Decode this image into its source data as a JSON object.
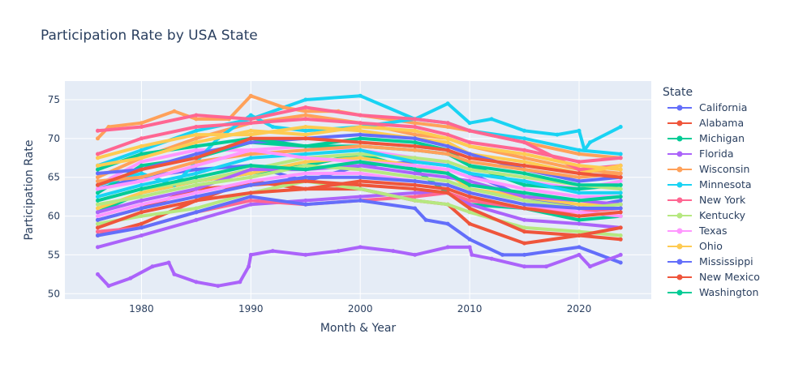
{
  "chart_data": {
    "type": "line",
    "title": "Participation Rate by USA State",
    "xlabel": "Month & Year",
    "ylabel": "Participation Rate",
    "xlim": [
      1973.0,
      2026.6
    ],
    "ylim": [
      49.3,
      77.4
    ],
    "x_ticks": [
      1980,
      1990,
      2000,
      2010,
      2020
    ],
    "y_ticks": [
      50,
      55,
      60,
      65,
      70,
      75
    ],
    "grid": true,
    "legend": {
      "title": "State",
      "placement": "right",
      "shown_entries": 13
    },
    "background_color": "#E5ECF6",
    "colors": [
      "#636EFA",
      "#EF553B",
      "#00CC96",
      "#AB63FA",
      "#FFA15A",
      "#19D3F3",
      "#FF6692",
      "#B6E880",
      "#FF97FF",
      "#FECB52"
    ],
    "series": [
      {
        "name": "California",
        "x": [
          1976,
          1980,
          1985,
          1990,
          1995,
          2000,
          2005,
          2008,
          2010,
          2015,
          2020,
          2023.8
        ],
        "y": [
          63.5,
          65.0,
          66.0,
          66.5,
          64.5,
          66.5,
          67.0,
          66.5,
          65.5,
          62.5,
          61.0,
          62.0
        ]
      },
      {
        "name": "Alabama",
        "x": [
          1976,
          1980,
          1985,
          1990,
          1995,
          2000,
          2005,
          2008,
          2010,
          2015,
          2020,
          2023.8
        ],
        "y": [
          57.5,
          59.0,
          62.0,
          64.5,
          63.5,
          63.5,
          62.0,
          61.5,
          59.0,
          56.5,
          57.5,
          57.0
        ]
      },
      {
        "name": "Michigan",
        "x": [
          1976,
          1980,
          1985,
          1990,
          1995,
          2000,
          2005,
          2008,
          2010,
          2015,
          2020,
          2023.8
        ],
        "y": [
          60.5,
          63.0,
          64.5,
          65.5,
          66.5,
          68.0,
          66.0,
          63.0,
          61.5,
          61.0,
          59.5,
          60.0
        ]
      },
      {
        "name": "Florida",
        "x": [
          1976,
          1980,
          1985,
          1990,
          1995,
          2000,
          2005,
          2008,
          2010,
          2015,
          2020,
          2023.8
        ],
        "y": [
          56.0,
          57.5,
          59.5,
          61.5,
          62.0,
          62.5,
          63.0,
          63.0,
          61.5,
          59.5,
          59.0,
          58.5
        ]
      },
      {
        "name": "Wisconsin",
        "x": [
          1976,
          1980,
          1985,
          1990,
          1995,
          2000,
          2005,
          2008,
          2010,
          2015,
          2020,
          2023.8
        ],
        "y": [
          65.0,
          67.5,
          70.0,
          72.0,
          73.0,
          72.0,
          70.5,
          70.0,
          69.0,
          67.5,
          66.0,
          65.5
        ]
      },
      {
        "name": "Minnesota",
        "x": [
          1976,
          1980,
          1985,
          1990,
          1995,
          2000,
          2005,
          2008,
          2010,
          2015,
          2020,
          2023.8
        ],
        "y": [
          66.5,
          68.5,
          71.0,
          72.5,
          75.0,
          75.5,
          72.5,
          72.0,
          71.0,
          70.0,
          68.5,
          68.0
        ]
      },
      {
        "name": "New York",
        "x": [
          1976,
          1980,
          1985,
          1990,
          1995,
          2000,
          2005,
          2008,
          2010,
          2015,
          2020,
          2023.8
        ],
        "y": [
          58.0,
          58.5,
          60.5,
          62.0,
          61.5,
          62.0,
          62.5,
          63.0,
          62.0,
          61.0,
          60.5,
          61.0
        ]
      },
      {
        "name": "Kentucky",
        "x": [
          1976,
          1980,
          1985,
          1990,
          1995,
          2000,
          2005,
          2008,
          2010,
          2015,
          2020,
          2023.8
        ],
        "y": [
          59.0,
          60.0,
          61.0,
          63.0,
          64.5,
          63.5,
          62.0,
          61.5,
          60.5,
          58.5,
          58.0,
          57.5
        ]
      },
      {
        "name": "Texas",
        "x": [
          1976,
          1980,
          1985,
          1990,
          1995,
          2000,
          2005,
          2008,
          2010,
          2015,
          2020,
          2023.8
        ],
        "y": [
          64.0,
          67.0,
          68.5,
          68.5,
          69.0,
          68.5,
          67.5,
          66.5,
          65.5,
          64.5,
          63.5,
          64.5
        ]
      },
      {
        "name": "Ohio",
        "x": [
          1976,
          1980,
          1985,
          1990,
          1995,
          2000,
          2005,
          2008,
          2010,
          2015,
          2020,
          2023.8
        ],
        "y": [
          61.0,
          63.0,
          64.5,
          65.5,
          67.0,
          67.5,
          66.5,
          65.5,
          63.5,
          62.5,
          61.5,
          61.5
        ]
      },
      {
        "name": "Mississippi",
        "x": [
          1976,
          1980,
          1985,
          1990,
          1995,
          2000,
          2005,
          2006,
          2008,
          2010,
          2013,
          2015,
          2020,
          2023.8
        ],
        "y": [
          57.5,
          58.5,
          60.5,
          62.5,
          61.5,
          62.0,
          61.0,
          59.5,
          59.0,
          57.0,
          55.0,
          55.0,
          56.0,
          54.0
        ]
      },
      {
        "name": "New Mexico",
        "x": [
          1976,
          1980,
          1985,
          1990,
          1995,
          2000,
          2005,
          2008,
          2010,
          2015,
          2020,
          2023.8
        ],
        "y": [
          59.5,
          61.0,
          63.5,
          64.0,
          64.5,
          64.0,
          63.5,
          63.0,
          61.0,
          58.0,
          57.5,
          58.5
        ]
      },
      {
        "name": "Washington",
        "x": [
          1976,
          1980,
          1985,
          1990,
          1995,
          2000,
          2005,
          2008,
          2010,
          2015,
          2020,
          2023.8
        ],
        "y": [
          63.0,
          66.5,
          67.5,
          69.5,
          69.0,
          69.0,
          68.5,
          68.0,
          66.5,
          64.0,
          63.5,
          64.0
        ]
      },
      {
        "x": [
          1976,
          1977,
          1979,
          1981,
          1982.5,
          1983,
          1985,
          1987,
          1989,
          1989.8,
          1990,
          1992,
          1995,
          1998,
          2000,
          2003,
          2005,
          2008,
          2010,
          2010.2,
          2012,
          2015,
          2017,
          2020,
          2021,
          2023.8
        ],
        "y": [
          52.5,
          51.0,
          52.0,
          53.5,
          54.0,
          52.5,
          51.5,
          51.0,
          51.5,
          53.5,
          55.0,
          55.5,
          55.0,
          55.5,
          56.0,
          55.5,
          55.0,
          56.0,
          56.0,
          55.0,
          54.5,
          53.5,
          53.5,
          55.0,
          53.5,
          55.0
        ]
      },
      {
        "x": [
          1976,
          1977,
          1980,
          1983,
          1985,
          1988,
          1990,
          1993,
          1995,
          1998,
          2000,
          2005,
          2008,
          2010,
          2015,
          2020,
          2023.8
        ],
        "y": [
          70.0,
          71.5,
          72.0,
          73.5,
          72.5,
          72.5,
          75.5,
          74.0,
          73.5,
          73.5,
          73.0,
          72.0,
          71.5,
          71.0,
          69.5,
          68.0,
          67.5
        ]
      },
      {
        "x": [
          1976,
          1980,
          1983,
          1985,
          1987,
          1990,
          1992,
          1995,
          2000,
          2005,
          2008,
          2010,
          2012,
          2015,
          2018,
          2020,
          2020.5,
          2021,
          2023.8
        ],
        "y": [
          64.0,
          65.5,
          64.0,
          67.0,
          70.0,
          73.0,
          71.5,
          71.0,
          71.5,
          72.5,
          74.5,
          72.0,
          72.5,
          71.0,
          70.5,
          71.0,
          68.5,
          69.5,
          71.5
        ]
      },
      {
        "x": [
          1976,
          1980,
          1985,
          1990,
          1995,
          2000,
          2005,
          2008,
          2010,
          2015,
          2020,
          2023.8
        ],
        "y": [
          71.0,
          71.5,
          73.0,
          72.5,
          74.0,
          73.0,
          72.5,
          72.0,
          71.0,
          69.5,
          66.0,
          66.5
        ]
      },
      {
        "x": [
          1976,
          1980,
          1985,
          1990,
          1995,
          2000,
          2005,
          2008,
          2010,
          2015,
          2020,
          2023.8
        ],
        "y": [
          62.0,
          63.5,
          64.5,
          66.0,
          67.5,
          68.0,
          67.5,
          67.0,
          66.0,
          65.0,
          64.0,
          63.5
        ]
      },
      {
        "x": [
          1976,
          1980,
          1985,
          1990,
          1995,
          2000,
          2005,
          2008,
          2010,
          2015,
          2020,
          2023.8
        ],
        "y": [
          60.0,
          61.5,
          63.0,
          64.5,
          65.5,
          65.5,
          64.5,
          64.0,
          63.0,
          61.5,
          60.5,
          60.0
        ]
      },
      {
        "x": [
          1976,
          1980,
          1985,
          1990,
          1995,
          2000,
          2005,
          2008,
          2010,
          2015,
          2020,
          2023.8
        ],
        "y": [
          67.5,
          69.0,
          70.5,
          70.5,
          71.5,
          71.0,
          70.0,
          69.5,
          68.0,
          67.0,
          65.5,
          66.5
        ]
      },
      {
        "x": [
          1976,
          1980,
          1985,
          1990,
          1995,
          2000,
          2005,
          2008,
          2010,
          2015,
          2020,
          2023.8
        ],
        "y": [
          65.5,
          66.0,
          68.0,
          69.5,
          70.0,
          70.5,
          70.0,
          69.0,
          68.0,
          66.0,
          64.5,
          65.0
        ]
      },
      {
        "x": [
          1976,
          1980,
          1985,
          1990,
          1995,
          2000,
          2005,
          2008,
          2010,
          2015,
          2020,
          2023.8
        ],
        "y": [
          58.5,
          60.5,
          62.0,
          63.0,
          63.5,
          64.5,
          64.0,
          63.5,
          62.5,
          61.0,
          60.0,
          60.5
        ]
      },
      {
        "x": [
          1976,
          1980,
          1985,
          1990,
          1995,
          2000,
          2005,
          2008,
          2010,
          2015,
          2020,
          2023.8
        ],
        "y": [
          66.0,
          68.0,
          69.0,
          70.0,
          69.0,
          70.0,
          69.5,
          68.5,
          66.5,
          65.5,
          64.0,
          64.0
        ]
      },
      {
        "x": [
          1976,
          1980,
          1985,
          1990,
          1995,
          2000,
          2005,
          2008,
          2010,
          2015,
          2020,
          2023.8
        ],
        "y": [
          60.5,
          62.0,
          63.5,
          66.0,
          66.0,
          66.5,
          65.5,
          65.0,
          64.5,
          62.5,
          62.0,
          61.5
        ]
      },
      {
        "x": [
          1976,
          1980,
          1985,
          1990,
          1995,
          2000,
          2005,
          2008,
          2010,
          2015,
          2020,
          2023.8
        ],
        "y": [
          64.5,
          65.0,
          67.0,
          68.0,
          68.5,
          69.0,
          68.5,
          68.0,
          67.0,
          66.0,
          65.0,
          65.5
        ]
      },
      {
        "x": [
          1976,
          1980,
          1985,
          1990,
          1995,
          2000,
          2005,
          2008,
          2010,
          2015,
          2020,
          2023.8
        ],
        "y": [
          62.5,
          64.0,
          65.5,
          67.5,
          68.0,
          68.5,
          67.0,
          66.5,
          65.5,
          64.5,
          63.0,
          63.0
        ]
      },
      {
        "x": [
          1976,
          1980,
          1985,
          1990,
          1995,
          2000,
          2005,
          2008,
          2010,
          2015,
          2020,
          2023.8
        ],
        "y": [
          68.0,
          70.0,
          71.5,
          72.0,
          72.5,
          72.0,
          71.5,
          70.5,
          69.5,
          68.5,
          67.0,
          67.5
        ]
      },
      {
        "x": [
          1976,
          1980,
          1985,
          1990,
          1995,
          2000,
          2005,
          2008,
          2010,
          2015,
          2020,
          2023.8
        ],
        "y": [
          61.5,
          62.5,
          64.0,
          65.0,
          66.5,
          66.0,
          65.0,
          64.5,
          63.5,
          62.0,
          61.0,
          61.5
        ]
      },
      {
        "x": [
          1976,
          1980,
          1985,
          1990,
          1995,
          2000,
          2005,
          2008,
          2010,
          2015,
          2020,
          2023.8
        ],
        "y": [
          63.5,
          64.5,
          66.5,
          68.5,
          67.5,
          67.0,
          66.5,
          66.0,
          65.0,
          63.5,
          62.5,
          62.5
        ]
      },
      {
        "x": [
          1976,
          1980,
          1985,
          1990,
          1995,
          2000,
          2005,
          2008,
          2010,
          2015,
          2020,
          2023.8
        ],
        "y": [
          66.5,
          67.5,
          69.5,
          71.0,
          70.5,
          71.5,
          71.0,
          70.0,
          69.0,
          68.0,
          66.5,
          66.0
        ]
      },
      {
        "x": [
          1976,
          1980,
          1985,
          1990,
          1995,
          2000,
          2005,
          2008,
          2010,
          2015,
          2020,
          2023.8
        ],
        "y": [
          59.5,
          61.0,
          62.5,
          64.0,
          65.0,
          65.0,
          64.5,
          64.0,
          63.0,
          61.5,
          61.0,
          61.0
        ]
      },
      {
        "x": [
          1976,
          1980,
          1985,
          1990,
          1995,
          2000,
          2005,
          2008,
          2010,
          2015,
          2020,
          2023.8
        ],
        "y": [
          64.0,
          66.0,
          67.5,
          70.0,
          70.0,
          69.5,
          69.0,
          68.5,
          67.5,
          66.5,
          65.5,
          65.0
        ]
      },
      {
        "x": [
          1976,
          1980,
          1985,
          1990,
          1995,
          2000,
          2005,
          2008,
          2010,
          2015,
          2020,
          2023.8
        ],
        "y": [
          62.0,
          63.5,
          65.0,
          66.5,
          66.0,
          67.0,
          66.0,
          65.5,
          64.0,
          63.0,
          62.0,
          62.5
        ]
      }
    ]
  }
}
